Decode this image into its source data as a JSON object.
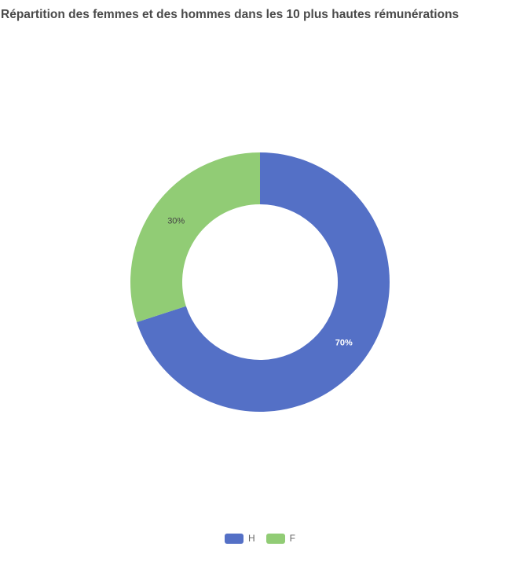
{
  "chart_data": {
    "type": "pie",
    "title": "Répartition des femmes et des hommes dans les 10 plus hautes rémunérations",
    "categories": [
      "H",
      "F"
    ],
    "values": [
      70,
      30
    ],
    "data_labels": [
      "70%",
      "30%"
    ],
    "colors": [
      "#5470c6",
      "#91cc75"
    ],
    "label_colors": [
      "#ffffff",
      "#444444"
    ],
    "start_angle_deg": 90,
    "direction": "clockwise",
    "donut": true,
    "legend_position": "bottom-center"
  }
}
